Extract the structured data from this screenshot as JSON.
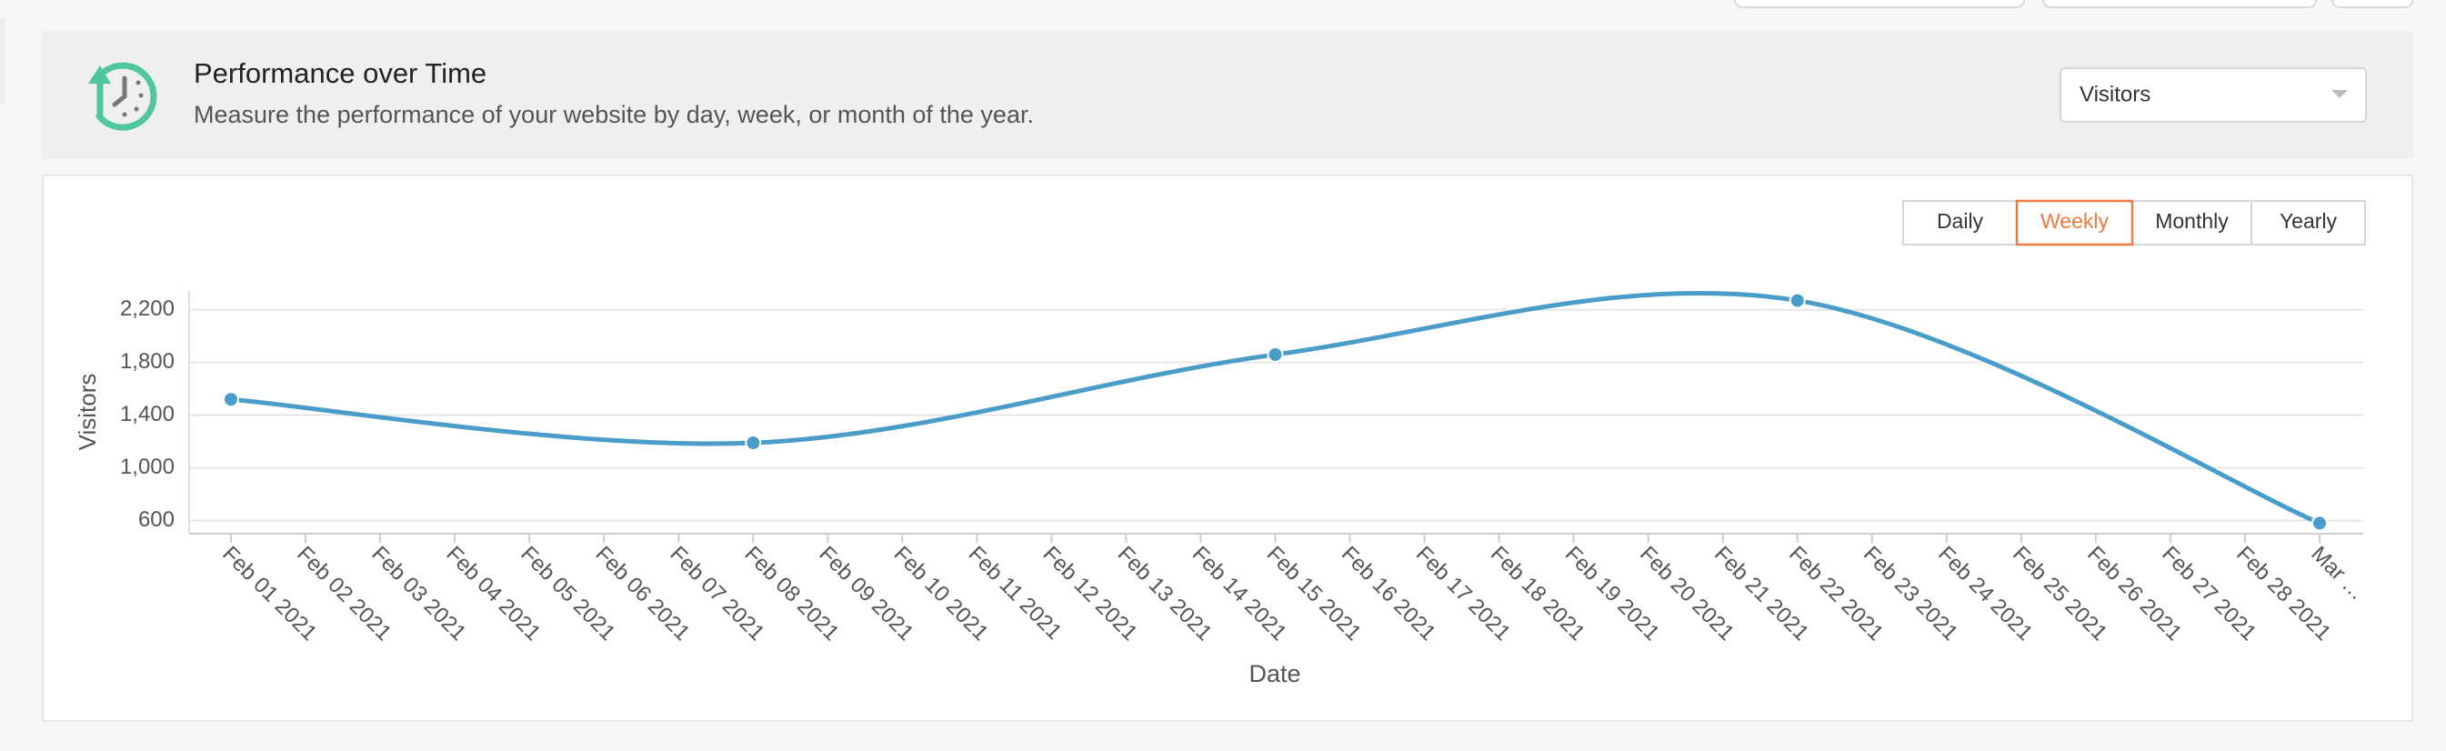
{
  "header": {
    "title": "Performance over Time",
    "subtitle": "Measure the performance of your website by day, week, or month of the year."
  },
  "dropdown": "Visitors",
  "tabs": [
    "Daily",
    "Weekly",
    "Monthly",
    "Yearly"
  ],
  "active_tab": "Weekly",
  "chart_data": {
    "type": "line",
    "color": "#4a9cc9",
    "grid": true,
    "xlabel": "Date",
    "ylabel": "Visitors",
    "xticks": [
      "Feb 01 2021",
      "Feb 02 2021",
      "Feb 03 2021",
      "Feb 04 2021",
      "Feb 05 2021",
      "Feb 06 2021",
      "Feb 07 2021",
      "Feb 08 2021",
      "Feb 09 2021",
      "Feb 10 2021",
      "Feb 11 2021",
      "Feb 12 2021",
      "Feb 13 2021",
      "Feb 14 2021",
      "Feb 15 2021",
      "Feb 16 2021",
      "Feb 17 2021",
      "Feb 18 2021",
      "Feb 19 2021",
      "Feb 20 2021",
      "Feb 21 2021",
      "Feb 22 2021",
      "Feb 23 2021",
      "Feb 24 2021",
      "Feb 25 2021",
      "Feb 26 2021",
      "Feb 27 2021",
      "Feb 28 2021",
      "Mar …"
    ],
    "x": [
      "Feb 01 2021",
      "Feb 08 2021",
      "Feb 15 2021",
      "Feb 22 2021",
      "Mar …"
    ],
    "values": [
      1520,
      1190,
      1860,
      2270,
      580
    ],
    "ylim": [
      500,
      2350
    ],
    "yticks": [
      600,
      {
        "value": 1000,
        "label": "1,000"
      },
      {
        "value": 1400,
        "label": "1,400"
      },
      {
        "value": 1800,
        "label": "1,800"
      },
      {
        "value": 2200,
        "label": "2,200"
      }
    ]
  }
}
